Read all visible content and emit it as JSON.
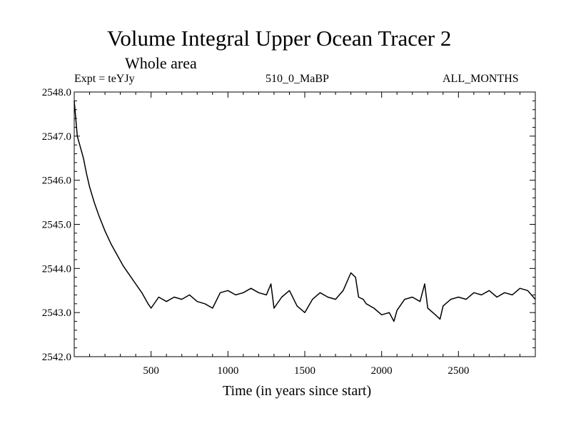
{
  "chart_data": {
    "type": "line",
    "title": "Volume Integral Upper Ocean Tracer 2",
    "subtitle": "Whole area",
    "annotations": {
      "left": "Expt = teYJy",
      "center": "510_0_MaBP",
      "right": "ALL_MONTHS"
    },
    "xlabel": "Time (in years since start)",
    "ylabel": "",
    "xlim": [
      0,
      3000
    ],
    "ylim": [
      2542.0,
      2548.0
    ],
    "xticks": [
      500,
      1000,
      1500,
      2000,
      2500
    ],
    "yticks": [
      "2542.0",
      "2543.0",
      "2544.0",
      "2545.0",
      "2546.0",
      "2547.0",
      "2548.0"
    ],
    "series": [
      {
        "name": "Volume Integral Upper Ocean Tracer 2",
        "x": [
          0,
          20,
          40,
          60,
          80,
          100,
          130,
          160,
          200,
          240,
          280,
          320,
          360,
          400,
          440,
          480,
          500,
          550,
          600,
          650,
          700,
          750,
          800,
          850,
          900,
          950,
          1000,
          1050,
          1100,
          1150,
          1200,
          1250,
          1280,
          1300,
          1350,
          1400,
          1450,
          1500,
          1550,
          1600,
          1650,
          1700,
          1750,
          1800,
          1830,
          1850,
          1880,
          1900,
          1950,
          2000,
          2050,
          2080,
          2100,
          2150,
          2200,
          2250,
          2280,
          2300,
          2350,
          2380,
          2400,
          2450,
          2500,
          2550,
          2600,
          2650,
          2700,
          2750,
          2800,
          2850,
          2900,
          2950,
          3000
        ],
        "y": [
          2547.8,
          2547.0,
          2546.75,
          2546.5,
          2546.15,
          2545.85,
          2545.5,
          2545.2,
          2544.85,
          2544.55,
          2544.3,
          2544.05,
          2543.85,
          2543.65,
          2543.45,
          2543.2,
          2543.1,
          2543.35,
          2543.25,
          2543.35,
          2543.3,
          2543.4,
          2543.25,
          2543.2,
          2543.1,
          2543.45,
          2543.5,
          2543.4,
          2543.45,
          2543.55,
          2543.45,
          2543.4,
          2543.65,
          2543.1,
          2543.35,
          2543.5,
          2543.15,
          2543.0,
          2543.3,
          2543.45,
          2543.35,
          2543.3,
          2543.5,
          2543.9,
          2543.8,
          2543.35,
          2543.3,
          2543.2,
          2543.1,
          2542.95,
          2543.0,
          2542.8,
          2543.05,
          2543.3,
          2543.35,
          2543.25,
          2543.65,
          2543.1,
          2542.95,
          2542.85,
          2543.15,
          2543.3,
          2543.35,
          2543.3,
          2543.45,
          2543.4,
          2543.5,
          2543.35,
          2543.45,
          2543.4,
          2543.55,
          2543.5,
          2543.3
        ]
      }
    ]
  }
}
